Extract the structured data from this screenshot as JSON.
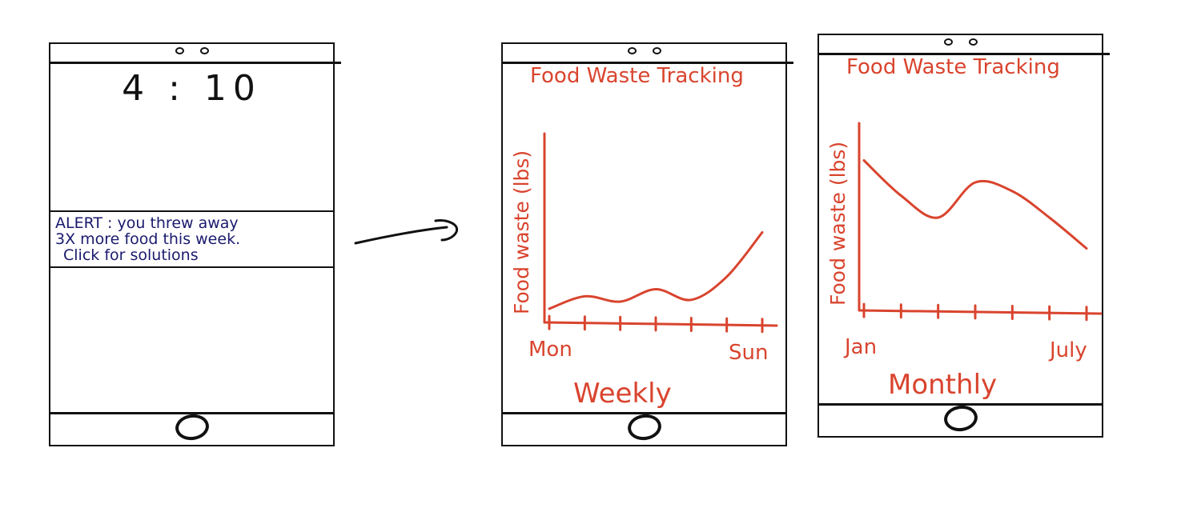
{
  "colors": {
    "ink": "#111111",
    "alert_text": "#1a1a6e",
    "chart_red": "#d9442e"
  },
  "lock_screen": {
    "time": "4 : 10",
    "alert": {
      "line1": "ALERT : you threw away",
      "line2": "3X more food this week.",
      "line3": "Click for solutions"
    },
    "home_icon": "home-button-circle"
  },
  "navigation": {
    "arrow_icon": "right-arrow"
  },
  "weekly_screen": {
    "title": "Food Waste Tracking",
    "ylabel": "Food waste (lbs)",
    "x_start": "Mon",
    "x_end": "Sun",
    "period": "Weekly"
  },
  "monthly_screen": {
    "title": "Food Waste Tracking",
    "ylabel": "Food waste (lbs)",
    "x_start": "Jan",
    "x_end": "July",
    "period": "Monthly"
  },
  "chart_data": [
    {
      "type": "line",
      "title": "Food Waste Tracking",
      "ylabel": "Food waste (lbs)",
      "xlabel": "Weekly",
      "categories": [
        "Mon",
        "",
        "",
        "",
        "",
        "",
        "Sun"
      ],
      "series": [
        {
          "values": [
            0.5,
            1.2,
            0.9,
            1.6,
            1.0,
            2.3,
            4.8
          ]
        }
      ],
      "ylim": [
        0,
        10
      ],
      "grid": false
    },
    {
      "type": "line",
      "title": "Food Waste Tracking",
      "ylabel": "Food waste (lbs)",
      "xlabel": "Monthly",
      "categories": [
        "Jan",
        "",
        "",
        "",
        "",
        "",
        "July"
      ],
      "series": [
        {
          "values": [
            6.6,
            5.0,
            4.0,
            5.6,
            5.2,
            4.0,
            2.6
          ]
        }
      ],
      "ylim": [
        0,
        8
      ],
      "grid": false
    }
  ]
}
